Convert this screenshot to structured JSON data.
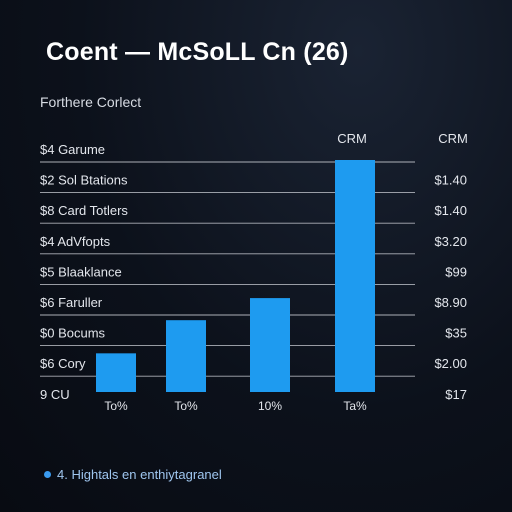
{
  "chart_data": {
    "type": "bar",
    "title": "Coent — McSoLL Cn (26)",
    "subtitle": "Forthere Corlect",
    "column_headers": [
      "CRM",
      "CRM"
    ],
    "rows": [
      {
        "label": "$4 Garume",
        "value": ""
      },
      {
        "label": "$2 Sol Btations",
        "value": "$1.40"
      },
      {
        "label": "$8 Card Totlers",
        "value": "$1.40"
      },
      {
        "label": "$4 AdVfopts",
        "value": "$3.20"
      },
      {
        "label": "$5 Blaaklance",
        "value": "$99"
      },
      {
        "label": "$6 Faruller",
        "value": "$8.90"
      },
      {
        "label": "$0 Bocums",
        "value": "$35"
      },
      {
        "label": "$6 Cory",
        "value": "$2.00"
      },
      {
        "label": "9 CU",
        "value": "$17"
      }
    ],
    "categories": [
      "To%",
      "To%",
      "10%",
      "Ta%"
    ],
    "values": [
      14,
      26,
      34,
      84
    ],
    "ylim": [
      0,
      90
    ],
    "bar_color": "#1e9bf0",
    "grid": true,
    "footnote": "4. Hightals en enthiytagranel"
  }
}
